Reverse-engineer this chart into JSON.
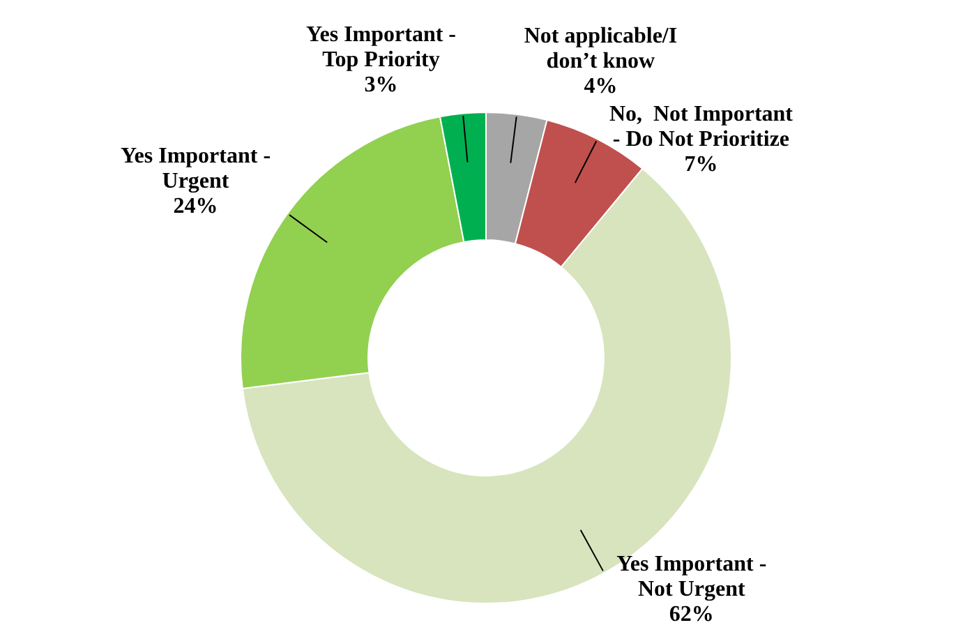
{
  "chart_data": {
    "type": "donut",
    "categories": [
      "Not applicable/I don’t know",
      "No,  Not Important - Do Not Prioritize",
      "Yes Important - Not Urgent",
      "Yes Important - Urgent",
      "Yes Important - Top Priority"
    ],
    "values": [
      4,
      7,
      62,
      24,
      3
    ],
    "value_labels": [
      "4%",
      "7%",
      "62%",
      "24%",
      "3%"
    ],
    "colors": [
      "#a6a6a6",
      "#c0504d",
      "#d7e4bd",
      "#92d050",
      "#00b050"
    ],
    "legend": false
  }
}
